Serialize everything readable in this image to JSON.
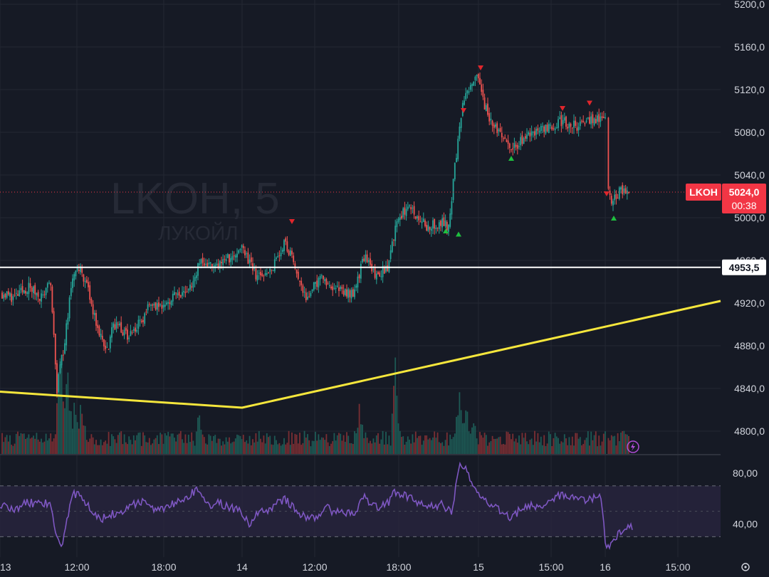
{
  "chart_data": {
    "type": "candlestick",
    "watermark": {
      "symbol_interval": "LKOH, 5",
      "name": "ЛУКОЙЛ"
    },
    "price_axis": {
      "ticks": [
        "5200,0",
        "5160,0",
        "5120,0",
        "5080,0",
        "5040,0",
        "5000,0",
        "4960,0",
        "4920,0",
        "4880,0",
        "4840,0",
        "4800,0"
      ],
      "ylim": [
        4780,
        5210
      ]
    },
    "time_axis": {
      "ticks": [
        "13",
        "12:00",
        "18:00",
        "14",
        "12:00",
        "18:00",
        "15",
        "15:00",
        "16",
        "15:00"
      ]
    },
    "last_price": {
      "symbol": "LKOH",
      "value": "5024,0",
      "countdown": "00:38"
    },
    "horizontal_line": {
      "value": 4953.5,
      "label": "4953,5"
    },
    "trendline_points": [
      {
        "time": "13 ~09:00",
        "price": 4837
      },
      {
        "time": "14 10:00",
        "price": 4822
      },
      {
        "time": "16 ~20:30",
        "price": 4922
      }
    ],
    "price_path": [
      [
        0,
        4930
      ],
      [
        0.02,
        4925
      ],
      [
        0.04,
        4935
      ],
      [
        0.06,
        4925
      ],
      [
        0.07,
        4945
      ],
      [
        0.08,
        4840
      ],
      [
        0.09,
        4880
      ],
      [
        0.1,
        4935
      ],
      [
        0.11,
        4955
      ],
      [
        0.12,
        4940
      ],
      [
        0.13,
        4915
      ],
      [
        0.14,
        4890
      ],
      [
        0.15,
        4875
      ],
      [
        0.16,
        4900
      ],
      [
        0.18,
        4890
      ],
      [
        0.2,
        4905
      ],
      [
        0.21,
        4920
      ],
      [
        0.22,
        4915
      ],
      [
        0.24,
        4925
      ],
      [
        0.26,
        4930
      ],
      [
        0.27,
        4935
      ],
      [
        0.28,
        4960
      ],
      [
        0.3,
        4955
      ],
      [
        0.32,
        4962
      ],
      [
        0.34,
        4970
      ],
      [
        0.36,
        4945
      ],
      [
        0.38,
        4950
      ],
      [
        0.4,
        4978
      ],
      [
        0.42,
        4945
      ],
      [
        0.43,
        4925
      ],
      [
        0.45,
        4945
      ],
      [
        0.47,
        4935
      ],
      [
        0.49,
        4928
      ],
      [
        0.5,
        4932
      ],
      [
        0.51,
        4965
      ],
      [
        0.53,
        4945
      ],
      [
        0.545,
        4955
      ],
      [
        0.55,
        4975
      ],
      [
        0.56,
        5000
      ],
      [
        0.575,
        5010
      ],
      [
        0.6,
        4992
      ],
      [
        0.62,
        4995
      ],
      [
        0.63,
        4992
      ],
      [
        0.64,
        5055
      ],
      [
        0.65,
        5105
      ],
      [
        0.66,
        5125
      ],
      [
        0.67,
        5138
      ],
      [
        0.68,
        5105
      ],
      [
        0.69,
        5090
      ],
      [
        0.71,
        5075
      ],
      [
        0.72,
        5065
      ],
      [
        0.74,
        5078
      ],
      [
        0.76,
        5082
      ],
      [
        0.79,
        5090
      ],
      [
        0.81,
        5085
      ],
      [
        0.83,
        5092
      ],
      [
        0.85,
        5095
      ],
      [
        0.853,
        5030
      ],
      [
        0.86,
        5015
      ],
      [
        0.87,
        5025
      ],
      [
        0.885,
        5024
      ]
    ],
    "signals": [
      {
        "type": "sell",
        "t": 0.41,
        "price": 4996
      },
      {
        "type": "buy",
        "t": 0.626,
        "price": 4988
      },
      {
        "type": "buy",
        "t": 0.644,
        "price": 4985
      },
      {
        "type": "sell",
        "t": 0.651,
        "price": 5100
      },
      {
        "type": "sell",
        "t": 0.675,
        "price": 5140
      },
      {
        "type": "buy",
        "t": 0.718,
        "price": 5056
      },
      {
        "type": "sell",
        "t": 0.79,
        "price": 5102
      },
      {
        "type": "sell",
        "t": 0.828,
        "price": 5107
      },
      {
        "type": "sell",
        "t": 0.852,
        "price": 5022
      },
      {
        "type": "buy",
        "t": 0.862,
        "price": 5000
      }
    ],
    "volume_spikes": [
      {
        "t": 0.085,
        "v": 0.95
      },
      {
        "t": 0.095,
        "v": 0.75
      },
      {
        "t": 0.105,
        "v": 0.45
      },
      {
        "t": 0.115,
        "v": 0.5
      },
      {
        "t": 0.28,
        "v": 0.4
      },
      {
        "t": 0.505,
        "v": 0.45
      },
      {
        "t": 0.555,
        "v": 0.8
      },
      {
        "t": 0.645,
        "v": 0.55
      },
      {
        "t": 0.655,
        "v": 0.45
      },
      {
        "t": 0.665,
        "v": 0.3
      },
      {
        "t": 0.853,
        "v": 0.2
      }
    ],
    "rsi": {
      "ticks": [
        "80,00",
        "40,00"
      ],
      "ylim": [
        14,
        94
      ],
      "bands": [
        70,
        30
      ],
      "path": [
        [
          0,
          55
        ],
        [
          0.02,
          52
        ],
        [
          0.04,
          57
        ],
        [
          0.06,
          55
        ],
        [
          0.07,
          58
        ],
        [
          0.08,
          28
        ],
        [
          0.085,
          20
        ],
        [
          0.09,
          30
        ],
        [
          0.1,
          62
        ],
        [
          0.11,
          65
        ],
        [
          0.12,
          58
        ],
        [
          0.14,
          44
        ],
        [
          0.16,
          48
        ],
        [
          0.18,
          53
        ],
        [
          0.2,
          58
        ],
        [
          0.22,
          50
        ],
        [
          0.24,
          56
        ],
        [
          0.26,
          60
        ],
        [
          0.27,
          64
        ],
        [
          0.28,
          68
        ],
        [
          0.29,
          55
        ],
        [
          0.31,
          56
        ],
        [
          0.33,
          52
        ],
        [
          0.34,
          48
        ],
        [
          0.35,
          40
        ],
        [
          0.36,
          48
        ],
        [
          0.38,
          52
        ],
        [
          0.4,
          60
        ],
        [
          0.42,
          48
        ],
        [
          0.44,
          44
        ],
        [
          0.46,
          52
        ],
        [
          0.48,
          48
        ],
        [
          0.5,
          50
        ],
        [
          0.51,
          62
        ],
        [
          0.53,
          52
        ],
        [
          0.545,
          56
        ],
        [
          0.555,
          66
        ],
        [
          0.57,
          62
        ],
        [
          0.6,
          54
        ],
        [
          0.62,
          55
        ],
        [
          0.635,
          50
        ],
        [
          0.645,
          86
        ],
        [
          0.655,
          82
        ],
        [
          0.665,
          72
        ],
        [
          0.68,
          58
        ],
        [
          0.7,
          52
        ],
        [
          0.715,
          45
        ],
        [
          0.74,
          54
        ],
        [
          0.76,
          55
        ],
        [
          0.79,
          64
        ],
        [
          0.81,
          58
        ],
        [
          0.83,
          60
        ],
        [
          0.845,
          62
        ],
        [
          0.85,
          22
        ],
        [
          0.86,
          26
        ],
        [
          0.875,
          36
        ],
        [
          0.89,
          37
        ]
      ]
    },
    "icons": [
      "lightning-icon",
      "settings-icon"
    ],
    "colors": {
      "background": "#161a25",
      "grid": "#242832",
      "up": "#26a69a",
      "down": "#ef5350",
      "trendline": "#f5e63c",
      "hline": "#ffffff",
      "rsi": "#7e57c2",
      "rsi_band": "#2a2540",
      "last_price": "#f23645",
      "signal_buy": "#1fbf3f",
      "signal_sell": "#e0262c"
    }
  }
}
